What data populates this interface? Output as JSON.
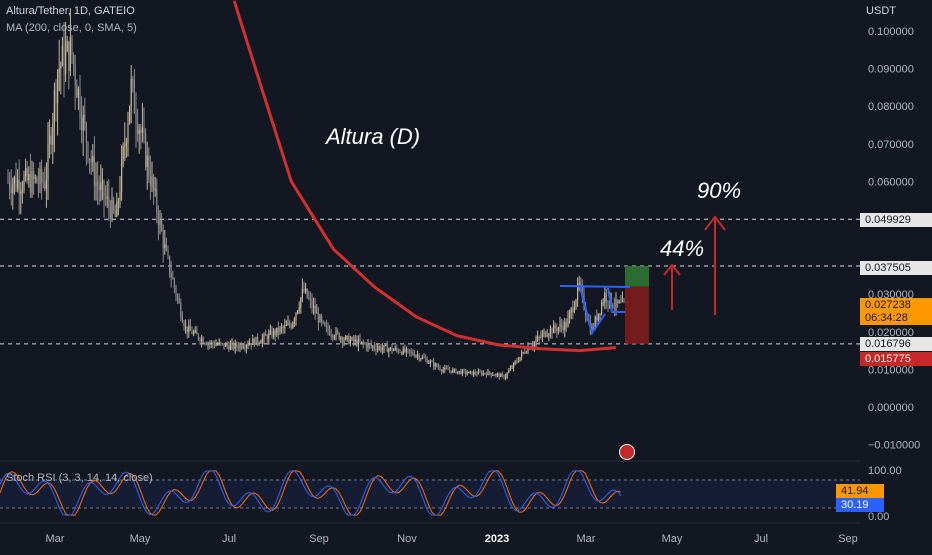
{
  "header": {
    "symbol_line": "Altura/Tether, 1D, GATEIO",
    "indicator_line": "MA (200, close, 0, SMA, 5)",
    "currency": "USDT"
  },
  "annotations": {
    "title": "Altura (D)",
    "target_1": "44%",
    "target_2": "90%"
  },
  "price_badges": {
    "level_high": "0.049929",
    "level_mid": "0.037505",
    "last_price": "0.027238",
    "countdown": "06:34:28",
    "level_low": "0.016796",
    "ma_value": "0.015775"
  },
  "rsi": {
    "legend": "Stoch RSI (3, 3, 14, 14, close)",
    "k_value": "41.94",
    "d_value": "30.19",
    "ticks": [
      "100.00",
      "0.00"
    ]
  },
  "colors": {
    "background": "#131722",
    "candle_up": "#c8b89a",
    "candle_down": "#8c8c8c",
    "ma_line": "#d32f2f",
    "rsi_k": "#2962ff",
    "rsi_d": "#ff6d00",
    "target_zone": "#2e7d32",
    "stop_zone": "#7f1d1d",
    "pattern_line": "#2962ff",
    "arrow": "#c62828"
  },
  "chart_data": [
    {
      "type": "candlestick",
      "symbol": "Altura/Tether",
      "timeframe": "1D",
      "exchange": "GATEIO",
      "x_ticks": [
        "Mar",
        "May",
        "Jul",
        "Sep",
        "Nov",
        "2023",
        "Mar",
        "May",
        "Jul",
        "Sep"
      ],
      "y_ticks": [
        "0.100000",
        "0.090000",
        "0.080000",
        "0.070000",
        "0.060000",
        "0.030000",
        "0.020000",
        "0.010000",
        "0.000000",
        "−0.010000"
      ],
      "ylim": [
        -0.012,
        0.108
      ],
      "price_path": {
        "x": [
          "2022-02-01",
          "2022-02-10",
          "2022-02-20",
          "2022-03-01",
          "2022-03-10",
          "2022-03-25",
          "2022-04-05",
          "2022-04-20",
          "2022-05-01",
          "2022-05-15",
          "2022-06-01",
          "2022-06-20",
          "2022-07-10",
          "2022-08-01",
          "2022-08-10",
          "2022-08-25",
          "2022-09-10",
          "2022-10-01",
          "2022-10-20",
          "2022-11-01",
          "2022-11-20",
          "2022-12-10",
          "2022-12-25",
          "2023-01-05",
          "2023-01-20",
          "2023-02-05",
          "2023-02-20",
          "2023-03-01",
          "2023-03-10",
          "2023-03-20",
          "2023-03-28"
        ],
        "y": [
          0.06,
          0.09,
          0.095,
          0.075,
          0.06,
          0.05,
          0.085,
          0.06,
          0.04,
          0.021,
          0.017,
          0.016,
          0.018,
          0.022,
          0.031,
          0.021,
          0.018,
          0.016,
          0.015,
          0.014,
          0.01,
          0.009,
          0.009,
          0.008,
          0.015,
          0.02,
          0.022,
          0.032,
          0.02,
          0.03,
          0.027
        ]
      },
      "series": [
        {
          "name": "MA (200, close, 0, SMA, 5)",
          "x": [
            "2022-06-20",
            "2022-07-10",
            "2022-08-01",
            "2022-09-01",
            "2022-10-01",
            "2022-11-01",
            "2022-12-01",
            "2023-01-01",
            "2023-02-01",
            "2023-03-01",
            "2023-03-28"
          ],
          "y": [
            0.108,
            0.085,
            0.06,
            0.042,
            0.032,
            0.024,
            0.019,
            0.0165,
            0.0155,
            0.015,
            0.0158
          ]
        }
      ],
      "horizontal_levels": [
        0.049929,
        0.037505,
        0.016796
      ],
      "last_price": 0.027238,
      "ma_last": 0.015775,
      "trade_setup": {
        "entry": 0.027238,
        "target": 0.037505,
        "stop": 0.016796
      },
      "targets_pct": [
        44,
        90
      ],
      "title": "Altura (D)",
      "grid": false
    },
    {
      "type": "line",
      "indicator": "Stoch RSI (3, 3, 14, 14, close)",
      "ylim": [
        0,
        100
      ],
      "y_ticks": [
        "100.00",
        "0.00"
      ],
      "k_last": 41.94,
      "d_last": 30.19
    }
  ]
}
